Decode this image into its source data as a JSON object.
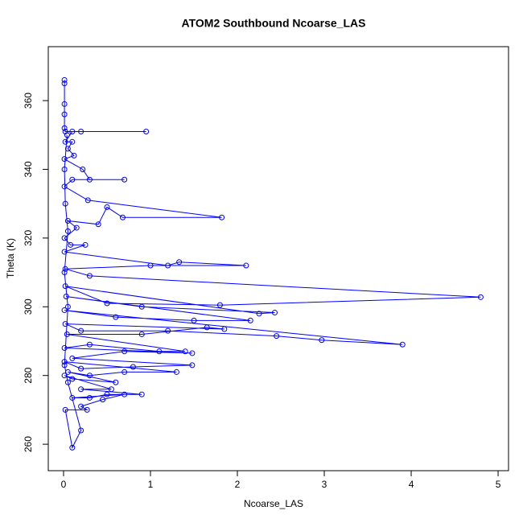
{
  "chart_data": {
    "type": "line",
    "title": "ATOM2 Southbound Ncoarse_LAS",
    "x_label": "Ncoarse_LAS",
    "y_label": "Theta (K)",
    "color": "#0000ff",
    "markers": true,
    "x": [
      0.01,
      0.01,
      0.01,
      0.01,
      0.01,
      0.02,
      0.95,
      0.2,
      0.1,
      0.02,
      0.1,
      0.05,
      0.12,
      0.01,
      0.22,
      0.3,
      0.7,
      0.1,
      0.01,
      0.28,
      1.82,
      0.68,
      0.5,
      0.4,
      0.05,
      0.15,
      0.01,
      0.08,
      0.25,
      0.01,
      1.2,
      1.33,
      2.1,
      1.0,
      0.02,
      0.3,
      4.8,
      1.8,
      0.5,
      0.02,
      2.25,
      2.43,
      0.9,
      0.03,
      2.15,
      1.5,
      0.6,
      0.01,
      3.9,
      2.97,
      2.45,
      1.2,
      0.2,
      0.02,
      1.85,
      1.65,
      0.9,
      0.04,
      1.4,
      1.1,
      0.3,
      0.01,
      1.48,
      0.7,
      0.1,
      1.48,
      0.8,
      0.2,
      0.01,
      1.3,
      0.7,
      0.3,
      0.05,
      0.6,
      0.1,
      0.01,
      0.55,
      0.2,
      0.9,
      0.5,
      0.3,
      0.1,
      0.7,
      0.45,
      0.2,
      0.27,
      0.02,
      0.1,
      0.2,
      0.05,
      0.01,
      0.05,
      0.01,
      0.05,
      0.02,
      0.01,
      0.04
    ],
    "values": [
      366,
      365,
      359,
      356,
      352,
      351,
      351,
      351,
      351,
      348,
      348,
      346,
      344,
      343,
      340,
      337,
      337,
      337,
      335,
      331,
      326,
      326,
      329,
      324,
      325,
      323,
      320,
      318,
      318,
      316,
      312,
      313,
      312,
      312,
      311,
      309,
      302.8,
      300.5,
      301,
      306,
      298,
      298.3,
      300,
      303,
      296,
      296,
      297,
      299,
      289,
      290.3,
      291.5,
      293,
      293,
      295,
      293.5,
      294,
      292,
      292,
      287,
      287,
      289,
      288,
      286.5,
      287,
      285,
      283,
      282.5,
      282,
      284,
      281,
      281,
      280,
      281,
      278,
      279,
      280,
      276,
      276,
      274.5,
      274.5,
      273.5,
      273.5,
      274.5,
      273,
      271,
      270,
      270,
      259,
      264,
      278,
      283,
      300,
      310,
      322,
      330,
      340,
      350
    ],
    "xlim": [
      -0.176,
      5.12
    ],
    "ylim": [
      252.3,
      375.7
    ],
    "xticks": [
      0,
      1,
      2,
      3,
      4,
      5
    ],
    "yticks": [
      260,
      280,
      300,
      320,
      340,
      360
    ]
  }
}
